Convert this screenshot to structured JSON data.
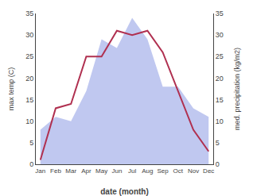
{
  "chart_data": {
    "type": "line",
    "categories": [
      "Jan",
      "Feb",
      "Mar",
      "Apr",
      "May",
      "Jun",
      "Jul",
      "Aug",
      "Sep",
      "Oct",
      "Nov",
      "Dec"
    ],
    "series": [
      {
        "type": "area",
        "axis": "y2",
        "color": "#c0c8f0",
        "values": [
          8,
          11,
          10,
          17,
          29,
          27,
          34,
          29,
          18,
          18,
          13,
          11
        ]
      },
      {
        "type": "line",
        "color": "#b03050",
        "values": [
          1,
          13,
          14,
          25,
          25,
          31,
          30,
          31,
          26,
          17,
          8,
          3
        ]
      }
    ],
    "xlabel": "date (month)",
    "ylabel": "max temp (C)",
    "y2label": "med. precipitation (kg/m2)",
    "ylim": [
      0,
      35
    ],
    "yticks": [
      0,
      5,
      10,
      15,
      20,
      25,
      30,
      35
    ],
    "y2lim": [
      0,
      35
    ],
    "y2ticks": [
      0,
      5,
      10,
      15,
      20,
      25,
      30,
      35
    ],
    "grid": false
  }
}
